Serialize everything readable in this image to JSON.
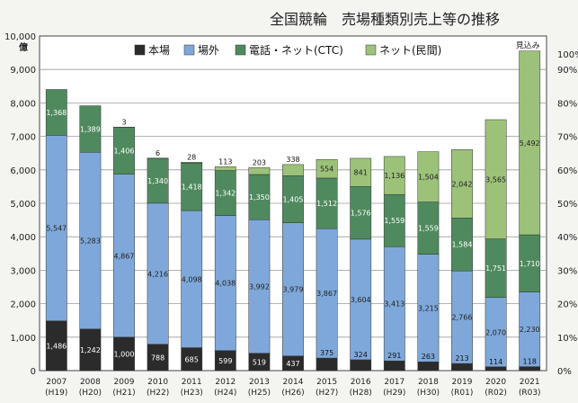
{
  "chart_data": {
    "type": "bar",
    "stacked": true,
    "title": "全国競輪　売場種類別売上等の推移",
    "y_unit": "億",
    "ylim": [
      0,
      10000
    ],
    "y_ticks": [
      "0",
      "1,000",
      "2,000",
      "3,000",
      "4,000",
      "5,000",
      "6,000",
      "7,000",
      "8,000",
      "9,000",
      "10,000"
    ],
    "y2_ticks": [
      "0%",
      "10%",
      "20%",
      "30%",
      "40%",
      "50%",
      "60%",
      "70%",
      "80%",
      "90%",
      "100%"
    ],
    "grid": true,
    "legend_position": "top",
    "categories": [
      "2007",
      "2008",
      "2009",
      "2010",
      "2011",
      "2012",
      "2013",
      "2014",
      "2015",
      "2016",
      "2017",
      "2018",
      "2019",
      "2020",
      "2021"
    ],
    "categories_sub": [
      "(H19)",
      "(H20)",
      "(H21)",
      "(H22)",
      "(H23)",
      "(H24)",
      "(H25)",
      "(H26)",
      "(H27)",
      "(H28)",
      "(H29)",
      "(H30)",
      "(R01)",
      "(R02)",
      "(R03)"
    ],
    "annotation": "見込み",
    "series": [
      {
        "name": "本場",
        "color": "#2b2b2b",
        "label_color": "#ffffff",
        "values": [
          1486,
          1242,
          1000,
          788,
          685,
          599,
          519,
          437,
          375,
          324,
          291,
          263,
          213,
          114,
          118
        ]
      },
      {
        "name": "場外",
        "color": "#7fa8da",
        "label_color": "#1f1f1f",
        "values": [
          5547,
          5283,
          4867,
          4216,
          4098,
          4038,
          3992,
          3979,
          3867,
          3604,
          3413,
          3215,
          2766,
          2070,
          2230
        ]
      },
      {
        "name": "電話・ネット(CTC)",
        "color": "#4f8a5e",
        "label_color": "#ffffff",
        "values": [
          1368,
          1389,
          1406,
          1340,
          1418,
          1342,
          1350,
          1405,
          1512,
          1576,
          1559,
          1559,
          1584,
          1751,
          1710
        ]
      },
      {
        "name": "ネット(民間)",
        "color": "#9cc27a",
        "label_color": "#1f1f1f",
        "values": [
          null,
          null,
          3,
          6,
          28,
          113,
          203,
          338,
          554,
          841,
          1136,
          1504,
          2042,
          3565,
          5492
        ]
      }
    ]
  }
}
